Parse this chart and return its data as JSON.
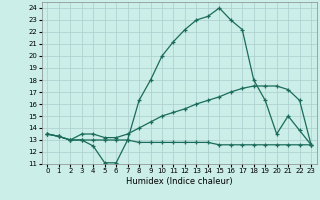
{
  "xlabel": "Humidex (Indice chaleur)",
  "background_color": "#cceee8",
  "grid_color": "#aacccc",
  "line_color": "#1a6b5a",
  "xlim": [
    -0.5,
    23.5
  ],
  "ylim": [
    11,
    24.5
  ],
  "yticks": [
    11,
    12,
    13,
    14,
    15,
    16,
    17,
    18,
    19,
    20,
    21,
    22,
    23,
    24
  ],
  "xticks": [
    0,
    1,
    2,
    3,
    4,
    5,
    6,
    7,
    8,
    9,
    10,
    11,
    12,
    13,
    14,
    15,
    16,
    17,
    18,
    19,
    20,
    21,
    22,
    23
  ],
  "curve1_x": [
    0,
    1,
    2,
    3,
    4,
    5,
    6,
    7,
    8,
    9,
    10,
    11,
    12,
    13,
    14,
    15,
    16,
    17,
    18,
    19,
    20,
    21,
    22,
    23
  ],
  "curve1_y": [
    13.5,
    13.3,
    13.0,
    13.0,
    12.5,
    11.1,
    11.1,
    13.0,
    16.3,
    18.0,
    20.0,
    21.2,
    22.2,
    23.0,
    23.3,
    24.0,
    23.0,
    22.2,
    18.0,
    16.3,
    13.5,
    15.0,
    13.8,
    12.6
  ],
  "curve2_x": [
    0,
    1,
    2,
    3,
    4,
    5,
    6,
    7,
    8,
    9,
    10,
    11,
    12,
    13,
    14,
    15,
    16,
    17,
    18,
    19,
    20,
    21,
    22,
    23
  ],
  "curve2_y": [
    13.5,
    13.3,
    13.0,
    13.5,
    13.5,
    13.2,
    13.2,
    13.5,
    14.0,
    14.5,
    15.0,
    15.3,
    15.6,
    16.0,
    16.3,
    16.6,
    17.0,
    17.3,
    17.5,
    17.5,
    17.5,
    17.2,
    16.3,
    12.6
  ],
  "curve3_x": [
    0,
    1,
    2,
    3,
    4,
    5,
    6,
    7,
    8,
    9,
    10,
    11,
    12,
    13,
    14,
    15,
    16,
    17,
    18,
    19,
    20,
    21,
    22,
    23
  ],
  "curve3_y": [
    13.5,
    13.3,
    13.0,
    13.0,
    13.0,
    13.0,
    13.0,
    13.0,
    12.8,
    12.8,
    12.8,
    12.8,
    12.8,
    12.8,
    12.8,
    12.6,
    12.6,
    12.6,
    12.6,
    12.6,
    12.6,
    12.6,
    12.6,
    12.6
  ]
}
